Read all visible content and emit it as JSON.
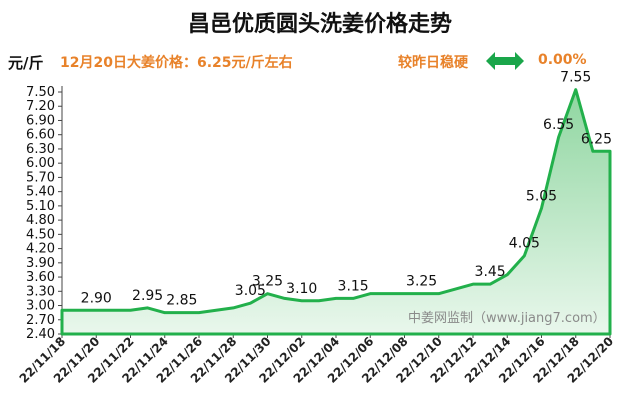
{
  "header": {
    "title": "昌邑优质圆头洗姜价格走势",
    "unit": "元/斤",
    "price_note": "12月20日大姜价格：6.25元/斤左右",
    "trend_label": "较昨日稳硬",
    "trend_change": "0.00%",
    "trend_icon": "double-arrow-icon"
  },
  "colors": {
    "accent_orange": "#e8822a",
    "line_green": "#22b04b",
    "fill_top": "#8fd6a0",
    "fill_bottom": "#e9f7ec",
    "arrow_green": "#1aa64a"
  },
  "chart_data": {
    "type": "area",
    "title": "昌邑优质圆头洗姜价格走势",
    "ylabel": "元/斤",
    "xlabel": "",
    "ylim": [
      2.4,
      7.5
    ],
    "yticks": [
      "2.40",
      "2.70",
      "3.00",
      "3.30",
      "3.60",
      "3.90",
      "4.20",
      "4.50",
      "4.80",
      "5.10",
      "5.40",
      "5.70",
      "6.00",
      "6.30",
      "6.60",
      "6.90",
      "7.20",
      "7.50"
    ],
    "x": [
      "22/11/18",
      "22/11/19",
      "22/11/20",
      "22/11/21",
      "22/11/22",
      "22/11/23",
      "22/11/24",
      "22/11/25",
      "22/11/26",
      "22/11/27",
      "22/11/28",
      "22/11/29",
      "22/11/30",
      "22/12/01",
      "22/12/02",
      "22/12/03",
      "22/12/04",
      "22/12/05",
      "22/12/06",
      "22/12/07",
      "22/12/08",
      "22/12/09",
      "22/12/10",
      "22/12/11",
      "22/12/12",
      "22/12/13",
      "22/12/14",
      "22/12/15",
      "22/12/16",
      "22/12/17",
      "22/12/18",
      "22/12/19",
      "22/12/20"
    ],
    "xticks": [
      "22/11/18",
      "22/11/20",
      "22/11/22",
      "22/11/24",
      "22/11/26",
      "22/11/28",
      "22/11/30",
      "22/12/02",
      "22/12/04",
      "22/12/06",
      "22/12/08",
      "22/12/10",
      "22/12/12",
      "22/12/14",
      "22/12/16",
      "22/12/18",
      "22/12/20"
    ],
    "values": [
      2.9,
      2.9,
      2.9,
      2.9,
      2.9,
      2.95,
      2.85,
      2.85,
      2.85,
      2.9,
      2.95,
      3.05,
      3.25,
      3.15,
      3.1,
      3.1,
      3.15,
      3.15,
      3.25,
      3.25,
      3.25,
      3.25,
      3.25,
      3.35,
      3.45,
      3.45,
      3.65,
      4.05,
      5.05,
      6.55,
      7.55,
      6.25,
      6.25
    ],
    "data_labels": [
      {
        "x": "22/11/20",
        "label": "2.90"
      },
      {
        "x": "22/11/23",
        "label": "2.95"
      },
      {
        "x": "22/11/25",
        "label": "2.85"
      },
      {
        "x": "22/11/29",
        "label": "3.05"
      },
      {
        "x": "22/11/30",
        "label": "3.25"
      },
      {
        "x": "22/12/02",
        "label": "3.10"
      },
      {
        "x": "22/12/05",
        "label": "3.15"
      },
      {
        "x": "22/12/09",
        "label": "3.25"
      },
      {
        "x": "22/12/13",
        "label": "3.45"
      },
      {
        "x": "22/12/15",
        "label": "4.05"
      },
      {
        "x": "22/12/16",
        "label": "5.05"
      },
      {
        "x": "22/12/17",
        "label": "6.55"
      },
      {
        "x": "22/12/18",
        "label": "7.55"
      },
      {
        "x": "22/12/20",
        "label": "6.25"
      }
    ],
    "watermark": "中姜网监制（www.jiang7.com）",
    "grid": false,
    "legend": "none"
  }
}
